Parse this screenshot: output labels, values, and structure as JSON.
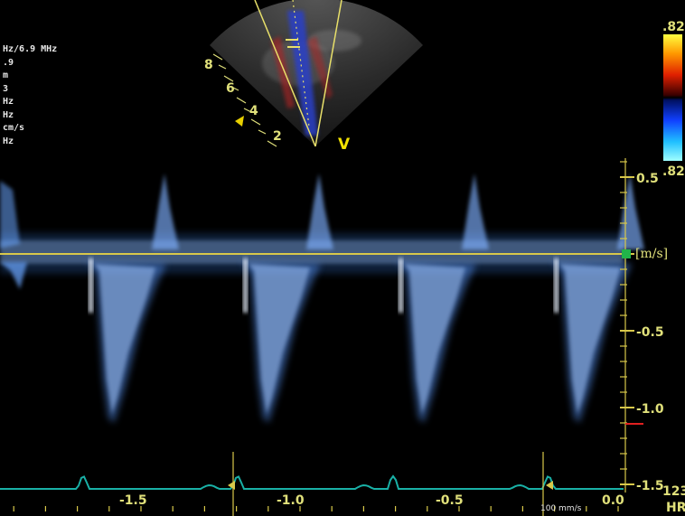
{
  "params": [
    "Hz/6.9 MHz",
    ".9",
    "m",
    "3",
    "Hz",
    "Hz",
    "cm/s",
    "Hz"
  ],
  "velocity_axis": {
    "unit": "[m/s]",
    "ticks": [
      {
        "label": "0.5",
        "value": 0.5
      },
      {
        "label": "-0.5",
        "value": -0.5
      },
      {
        "label": "-1.0",
        "value": -1.0
      },
      {
        "label": "-1.5",
        "value": -1.5
      }
    ]
  },
  "time_axis": {
    "ticks": [
      {
        "label": "-1.5",
        "value": -1.5
      },
      {
        "label": "-1.0",
        "value": -1.0
      },
      {
        "label": "-0.5",
        "value": -0.5
      },
      {
        "label": "0.0",
        "value": 0.0
      }
    ],
    "sweep_speed": "100 mm/s"
  },
  "color_scale": {
    "top": ".82",
    "bottom": ".82"
  },
  "depth_labels": [
    "8",
    "6",
    "4",
    "2"
  ],
  "sector_marker": "V",
  "heart_rate": {
    "value": "123",
    "unit": "HR"
  },
  "colors": {
    "label_yellow": "#e0e07a",
    "baseline": "#d8c84a",
    "ecg": "#19b0a6",
    "doppler": "#6aa6ff"
  }
}
